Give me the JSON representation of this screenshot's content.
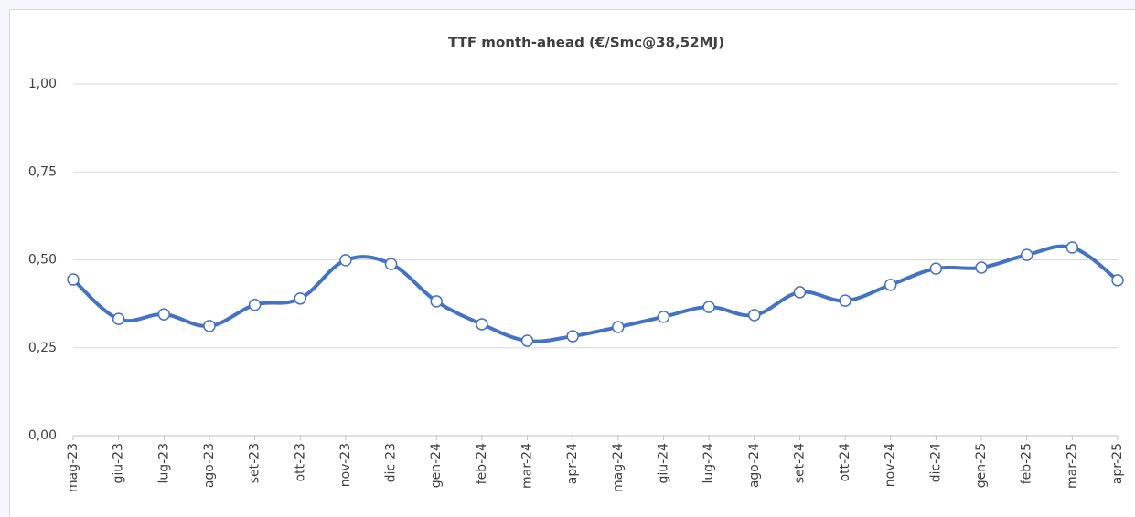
{
  "chart_data": {
    "type": "line",
    "title": "TTF month-ahead (€/Smc@38,52MJ)",
    "categories": [
      "mag-23",
      "giu-23",
      "lug-23",
      "ago-23",
      "set-23",
      "ott-23",
      "nov-23",
      "dic-23",
      "gen-24",
      "feb-24",
      "mar-24",
      "apr-24",
      "mag-24",
      "giu-24",
      "lug-24",
      "ago-24",
      "set-24",
      "ott-24",
      "nov-24",
      "dic-24",
      "gen-25",
      "feb-25",
      "mar-25",
      "apr-25"
    ],
    "series": [
      {
        "name": "TTF month-ahead",
        "color": "#4472c4",
        "values": [
          0.444,
          0.332,
          0.345,
          0.312,
          0.372,
          0.39,
          0.499,
          0.488,
          0.382,
          0.317,
          0.27,
          0.283,
          0.309,
          0.338,
          0.366,
          0.343,
          0.408,
          0.384,
          0.429,
          0.475,
          0.478,
          0.514,
          0.535,
          0.442
        ]
      }
    ],
    "ylim": [
      0,
      1
    ],
    "yticks": [
      {
        "value": 0,
        "label": "0,00"
      },
      {
        "value": 0.25,
        "label": "0,25"
      },
      {
        "value": 0.5,
        "label": "0,50"
      },
      {
        "value": 0.75,
        "label": "0,75"
      },
      {
        "value": 1,
        "label": "1,00"
      }
    ],
    "grid": true
  }
}
